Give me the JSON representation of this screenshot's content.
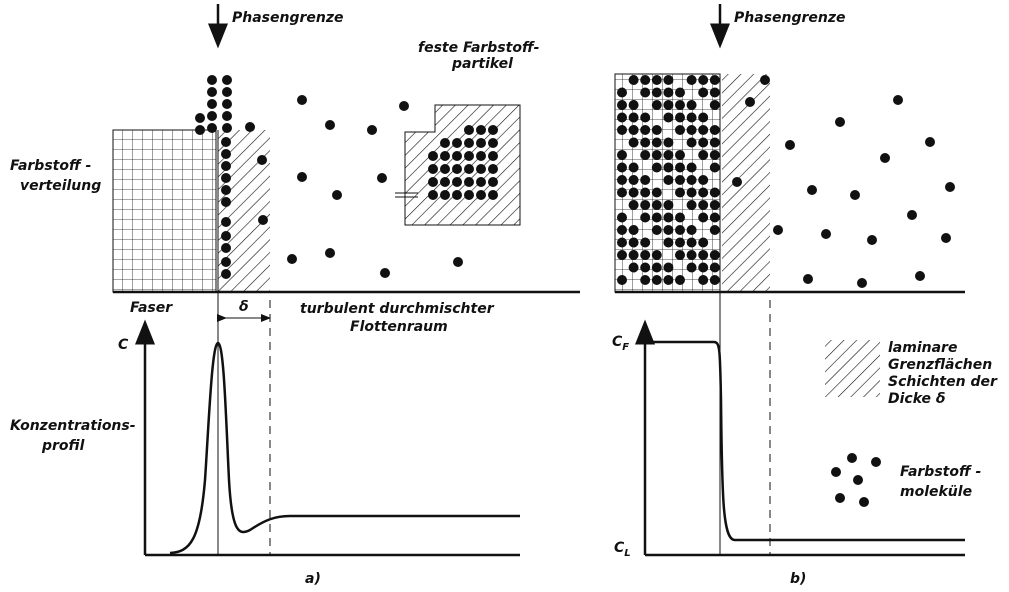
{
  "panel_a": {
    "phase_boundary": "Phasengrenze",
    "particles_label": [
      "feste Farbstoff-",
      "partikel"
    ],
    "fiber_label": "Faser",
    "delta": "δ",
    "liquor_label": [
      "turbulent durchmischter",
      "Flottenraum"
    ],
    "axis_c": "C",
    "caption": "a)"
  },
  "panel_b": {
    "phase_boundary": "Phasengrenze",
    "axis_top": "C",
    "axis_top_sub": "F",
    "axis_bottom": "C",
    "axis_bottom_sub": "L",
    "caption": "b)"
  },
  "side_labels": {
    "distribution": [
      "Farbstoff -",
      "verteilung"
    ],
    "profile": [
      "Konzentrations-",
      "profil"
    ]
  },
  "legend": {
    "laminar": [
      "laminare",
      "Grenzflächen",
      "Schichten der",
      "Dicke δ"
    ],
    "molecules": [
      "Farbstoff -",
      "moleküle"
    ]
  }
}
